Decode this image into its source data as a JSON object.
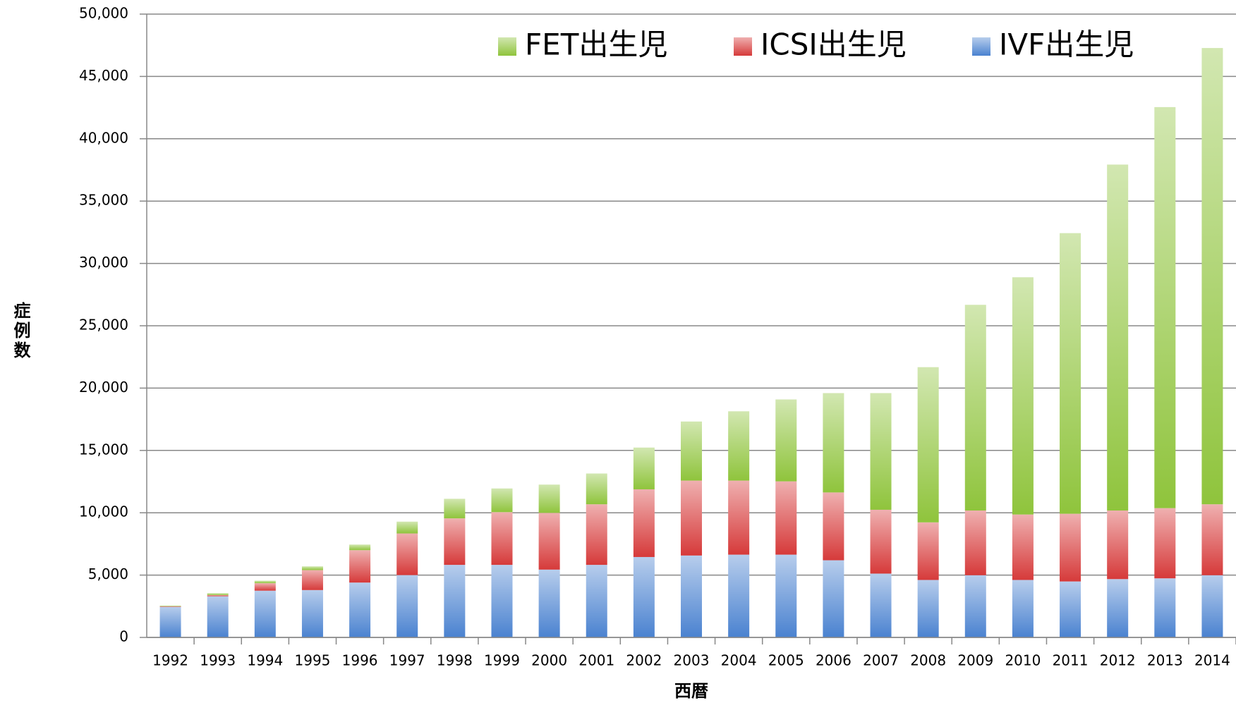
{
  "chart_data": {
    "type": "stacked_bar",
    "x_label": "西暦",
    "y_label": "症例数",
    "categories": [
      "1992",
      "1993",
      "1994",
      "1995",
      "1996",
      "1997",
      "1998",
      "1999",
      "2000",
      "2001",
      "2002",
      "2003",
      "2004",
      "2005",
      "2006",
      "2007",
      "2008",
      "2009",
      "2010",
      "2011",
      "2012",
      "2013",
      "2014"
    ],
    "series": [
      {
        "name": "IVF出生児",
        "color": "#4a82d0",
        "values": [
          2450,
          3300,
          3750,
          3800,
          4400,
          5000,
          5820,
          5820,
          5440,
          5820,
          6450,
          6570,
          6640,
          6640,
          6190,
          5120,
          4610,
          4990,
          4610,
          4490,
          4680,
          4740,
          4990
        ]
      },
      {
        "name": "ICSI出生児",
        "color": "#d63a3a",
        "values": [
          50,
          100,
          600,
          1600,
          2600,
          3340,
          3730,
          4230,
          4550,
          4860,
          5430,
          6010,
          5940,
          5880,
          5440,
          5120,
          4620,
          5190,
          5250,
          5430,
          5500,
          5630,
          5690
        ]
      },
      {
        "name": "FET出生児",
        "color": "#8fc43c",
        "values": [
          50,
          150,
          200,
          300,
          450,
          950,
          1570,
          1900,
          2270,
          2470,
          3350,
          4740,
          5560,
          6570,
          7970,
          9360,
          12450,
          16500,
          19030,
          22510,
          27750,
          32170,
          36600
        ]
      }
    ],
    "ylim": [
      0,
      50000
    ],
    "yticks": [
      0,
      {
        "value": 5000,
        "label": "5,000"
      },
      {
        "value": 10000,
        "label": "10,000"
      },
      {
        "value": 15000,
        "label": "15,000"
      },
      {
        "value": 20000,
        "label": "20,000"
      },
      {
        "value": 25000,
        "label": "25,000"
      },
      {
        "value": 30000,
        "label": "30,000"
      },
      {
        "value": 35000,
        "label": "35,000"
      },
      {
        "value": 40000,
        "label": "40,000"
      },
      {
        "value": 45000,
        "label": "45,000"
      },
      {
        "value": 50000,
        "label": "50,000"
      }
    ],
    "grid": true,
    "legend": "top"
  }
}
